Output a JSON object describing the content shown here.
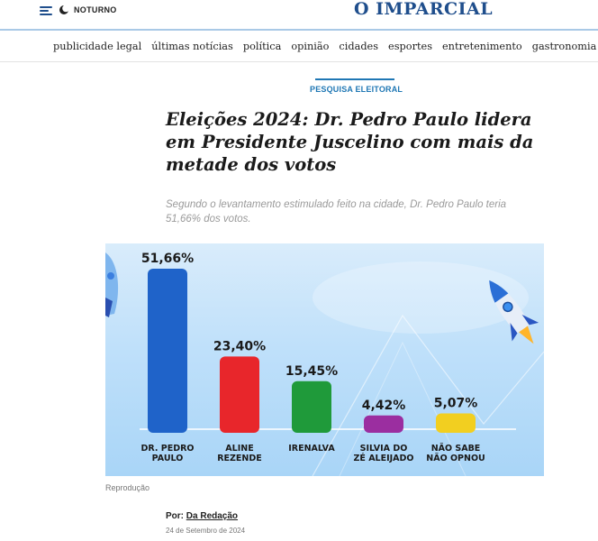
{
  "topbar": {
    "night_mode_label": "NOTURNO",
    "logo": "O IMPARCIAL",
    "accent": "#1f4e8c"
  },
  "nav": {
    "items": [
      "publicidade legal",
      "últimas notícias",
      "política",
      "opinião",
      "cidades",
      "esportes",
      "entretenimento",
      "gastronomia"
    ]
  },
  "article": {
    "kicker": "PESQUISA ELEITORAL",
    "title": "Eleições 2024: Dr. Pedro Paulo lidera em Presidente Juscelino com mais da metade dos votos",
    "subtitle": "Segundo o levantamento estimulado feito na cidade, Dr. Pedro Paulo teria 51,66% dos votos.",
    "image_caption": "Reprodução",
    "author_prefix": "Por:",
    "author_name": "Da Redação",
    "date": "24 de Setembro de 2024"
  },
  "chart_data": {
    "type": "bar",
    "categories": [
      [
        "DR. PEDRO",
        "PAULO"
      ],
      [
        "ALINE",
        "REZENDE"
      ],
      [
        "IRENALVA"
      ],
      [
        "SILVIA DO",
        "ZÉ ALEIJADO"
      ],
      [
        "NÃO SABE",
        "NÃO OPNOU"
      ]
    ],
    "values": [
      51.66,
      23.4,
      15.45,
      4.42,
      5.07
    ],
    "value_labels": [
      "51,66%",
      "23,40%",
      "15,45%",
      "4,42%",
      "5,07%"
    ],
    "colors": [
      "#1f63c9",
      "#e8262b",
      "#1f9a3a",
      "#9b2ea0",
      "#f2cf20"
    ],
    "title": "",
    "xlabel": "",
    "ylabel": "",
    "ylim": [
      0,
      55
    ]
  }
}
